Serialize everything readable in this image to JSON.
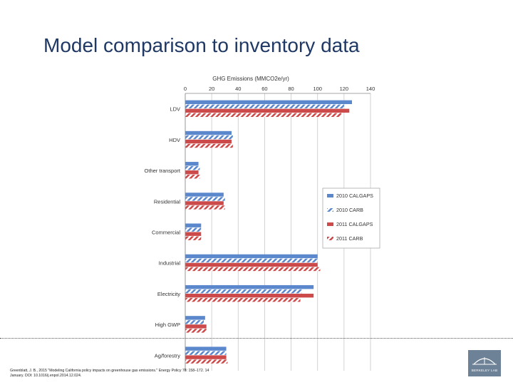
{
  "slide": {
    "title": "Model comparison to inventory data",
    "citation_line1": "Greenblatt, J. B., 2015 \"Modeling California policy impacts on greenhouse gas emissions.\" Energy Policy 78: 158–172. 14",
    "citation_line2": "January. DOI: 10.1016/j.enpol.2014.12.024.",
    "logo_label": "BERKELEY LAB",
    "colors": {
      "title": "#1f3864",
      "divider": "#555555",
      "logo_bg": "#6d8197"
    }
  },
  "chart_data": {
    "type": "bar",
    "orientation": "horizontal",
    "title": "GHG Emissions (MMCO2e/yr)",
    "xlim": [
      0,
      140
    ],
    "xticks": [
      "0",
      "20",
      "40",
      "60",
      "80",
      "100",
      "120",
      "140"
    ],
    "categories": [
      "LDV",
      "HDV",
      "Other transport",
      "Residential",
      "Commercial",
      "Industrial",
      "Electricity",
      "High GWP",
      "Ag/forestry"
    ],
    "legend_position": "right",
    "series": [
      {
        "name": "2010 CALGAPS",
        "color": "#5b88cc",
        "pattern": "solid",
        "values": [
          126,
          35,
          10,
          29,
          12,
          100,
          97,
          15,
          31
        ]
      },
      {
        "name": "2010 CARB",
        "color": "#5b88cc",
        "pattern": "hatched",
        "values": [
          120,
          36,
          11,
          30,
          12,
          100,
          88,
          14,
          31
        ]
      },
      {
        "name": "2011 CALGAPS",
        "color": "#cc4a4a",
        "pattern": "solid",
        "values": [
          124,
          35,
          10,
          29,
          12,
          100,
          97,
          16,
          31
        ]
      },
      {
        "name": "2011 CARB",
        "color": "#cc4a4a",
        "pattern": "hatched",
        "values": [
          118,
          36,
          11,
          30,
          12,
          102,
          87,
          16,
          32
        ]
      }
    ]
  }
}
